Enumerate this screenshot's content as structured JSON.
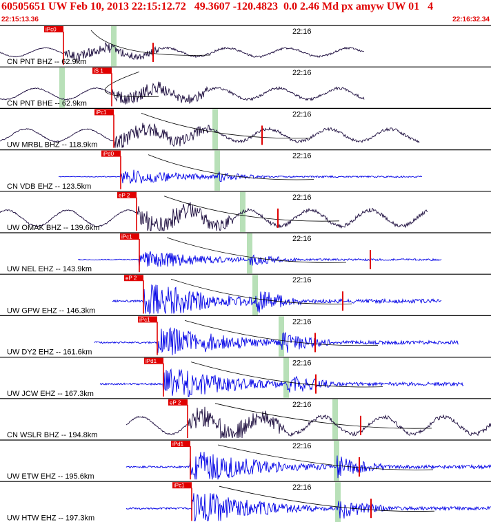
{
  "header": {
    "title": "60505651 UW Feb 10, 2013 22:15:12.72   49.3607 -120.4823  0.0 2.46 Md px amyw UW 01   4",
    "start_time": "22:15:13.36",
    "end_time": "22:16:32.34"
  },
  "colors": {
    "accent": "#e00000",
    "broadband_trace": "#1a0a3c",
    "short_period_trace": "#0000e6",
    "s_window": "#b8e0b8",
    "pick": "#e00000"
  },
  "time_axis_marker": "22:16",
  "traces": [
    {
      "label": "CN PNT BHZ -- 62.9km",
      "pick": "iPc0",
      "type": "broadband"
    },
    {
      "label": "CN PNT BHE -- 62.9km",
      "pick": "iS 1",
      "type": "broadband"
    },
    {
      "label": "UW MRBL BHZ -- 118.9km",
      "pick": "iPc1",
      "type": "broadband"
    },
    {
      "label": "CN VDB EHZ -- 123.5km",
      "pick": "iPd0",
      "type": "short"
    },
    {
      "label": "UW OMAK BHZ -- 139.6km",
      "pick": "eP 2",
      "type": "broadband"
    },
    {
      "label": "UW NEL EHZ -- 143.9km",
      "pick": "iPc1",
      "type": "short"
    },
    {
      "label": "UW GPW EHZ -- 146.3km",
      "pick": "eP 2",
      "type": "short"
    },
    {
      "label": "UW DY2 EHZ -- 161.6km",
      "pick": "iPc1",
      "type": "short"
    },
    {
      "label": "UW JCW EHZ -- 167.3km",
      "pick": "iPd1",
      "type": "short"
    },
    {
      "label": "CN WSLR BHZ -- 194.8km",
      "pick": "eP 2",
      "type": "broadband"
    },
    {
      "label": "UW ETW EHZ -- 195.6km",
      "pick": "iPd1",
      "type": "short"
    },
    {
      "label": "UW HTW EHZ -- 197.3km",
      "pick": "iPc1",
      "type": "short"
    }
  ]
}
